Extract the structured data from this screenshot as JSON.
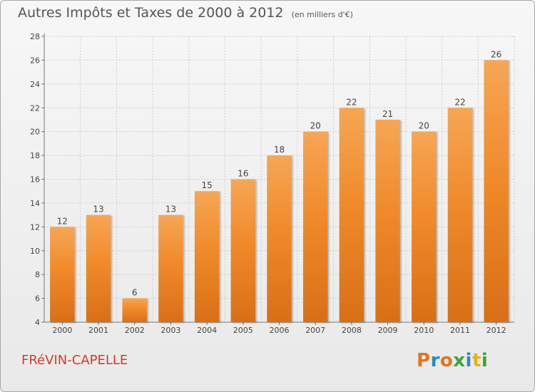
{
  "header": {
    "title": "Autres Impôts et Taxes de 2000 à 2012",
    "subtitle": "(en milliers d'€)"
  },
  "footer": {
    "commune": "FRéVIN-CAPELLE",
    "logo_text": "Proxiti",
    "logo_colors": [
      "#e8731f",
      "#2e86c9",
      "#e8731f",
      "#3aa53a",
      "#2e86c9",
      "#e2b11b",
      "#3aa53a"
    ]
  },
  "colors": {
    "bar": "#f08a2a",
    "bar_top": "#f6a655",
    "bar_bottom": "#d96f17",
    "label": "#444444"
  },
  "chart_data": {
    "type": "bar",
    "title": "Autres Impôts et Taxes de 2000 à 2012",
    "subtitle": "(en milliers d'€)",
    "categories": [
      "2000",
      "2001",
      "2002",
      "2003",
      "2004",
      "2005",
      "2006",
      "2007",
      "2008",
      "2009",
      "2010",
      "2011",
      "2012"
    ],
    "values": [
      12,
      13,
      6,
      13,
      15,
      16,
      18,
      20,
      22,
      21,
      20,
      22,
      26
    ],
    "ylim": [
      4,
      28
    ],
    "yticks": [
      4,
      6,
      8,
      10,
      12,
      14,
      16,
      18,
      20,
      22,
      24,
      26,
      28
    ],
    "grid": true,
    "data_labels": true
  }
}
